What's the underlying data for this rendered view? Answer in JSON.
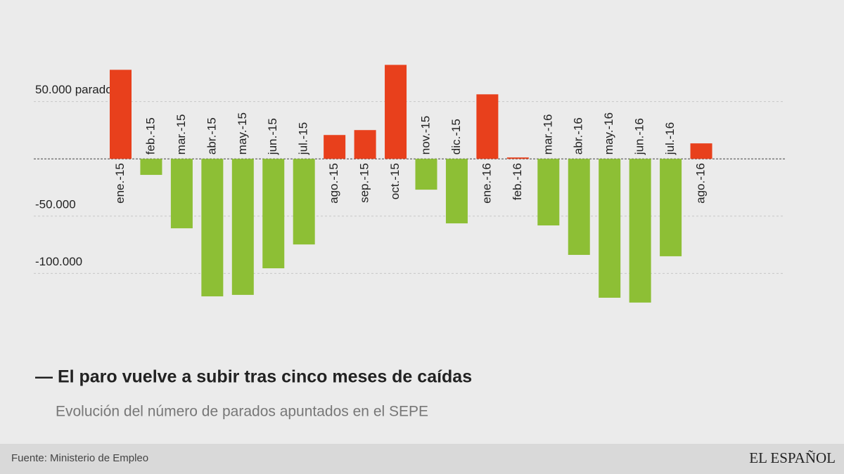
{
  "chart_data": {
    "type": "bar",
    "title": "— El paro vuelve a subir tras cinco meses de caídas",
    "subtitle": "Evolución del número de parados apuntados en el SEPE",
    "source": "Fuente: Ministerio de Empleo",
    "brand": "EL ESPAÑOL",
    "categories": [
      "ene.-15",
      "feb.-15",
      "mar.-15",
      "abr.-15",
      "may.-15",
      "jun.-15",
      "jul.-15",
      "ago.-15",
      "sep.-15",
      "oct.-15",
      "nov.-15",
      "dic.-15",
      "ene.-16",
      "feb.-16",
      "mar.-16",
      "abr.-16",
      "may.-16",
      "jun.-16",
      "jul.-16",
      "ago.-16"
    ],
    "values": [
      77700,
      -14000,
      -60600,
      -120000,
      -118700,
      -95500,
      -74700,
      20800,
      25100,
      82000,
      -26900,
      -56300,
      56300,
      1200,
      -58100,
      -83800,
      -121200,
      -125400,
      -85000,
      13500
    ],
    "positive_color": "#e8401c",
    "negative_color": "#8dbf35",
    "ylim": [
      -150000,
      100000
    ],
    "yticks": [
      {
        "value": 50000,
        "label": "50.000 parados"
      },
      {
        "value": -50000,
        "label": "-50.000"
      },
      {
        "value": -100000,
        "label": "-100.000"
      }
    ],
    "grid": true
  }
}
